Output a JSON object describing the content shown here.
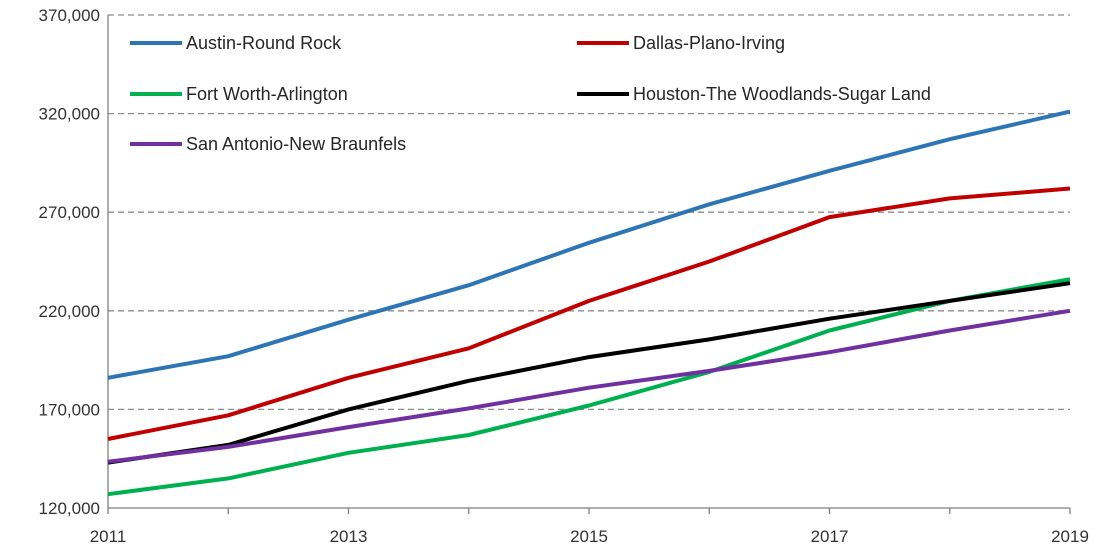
{
  "chart_data": {
    "type": "line",
    "x": [
      2011,
      2012,
      2013,
      2014,
      2015,
      2016,
      2017,
      2018,
      2019
    ],
    "xticks": [
      "2011",
      "2013",
      "2015",
      "2017",
      "2019"
    ],
    "yticks": [
      "120,000",
      "170,000",
      "220,000",
      "270,000",
      "320,000",
      "370,000"
    ],
    "ylim": [
      120000,
      370000
    ],
    "xlim": [
      2011,
      2019
    ],
    "grid": "horizontal-dashed",
    "legend_placement": "top-inside",
    "series": [
      {
        "name": "Austin-Round Rock",
        "color": "#2E75B6",
        "values": [
          186000,
          197000,
          215500,
          233000,
          254500,
          274000,
          291000,
          307000,
          321000
        ]
      },
      {
        "name": "Dallas-Plano-Irving",
        "color": "#C00000",
        "values": [
          155000,
          167000,
          186000,
          201000,
          225000,
          245000,
          267500,
          277000,
          282000
        ]
      },
      {
        "name": "Fort Worth-Arlington",
        "color": "#00B050",
        "values": [
          127000,
          135000,
          148000,
          157000,
          172000,
          189000,
          210000,
          225000,
          236000
        ]
      },
      {
        "name": "Houston-The Woodlands-Sugar Land",
        "color": "#000000",
        "values": [
          143000,
          152000,
          170000,
          184500,
          196500,
          205500,
          216000,
          225000,
          234000
        ]
      },
      {
        "name": "San Antonio-New Braunfels",
        "color": "#7030A0",
        "values": [
          143500,
          151000,
          161000,
          170500,
          181000,
          189500,
          199000,
          210000,
          220000
        ]
      }
    ]
  }
}
